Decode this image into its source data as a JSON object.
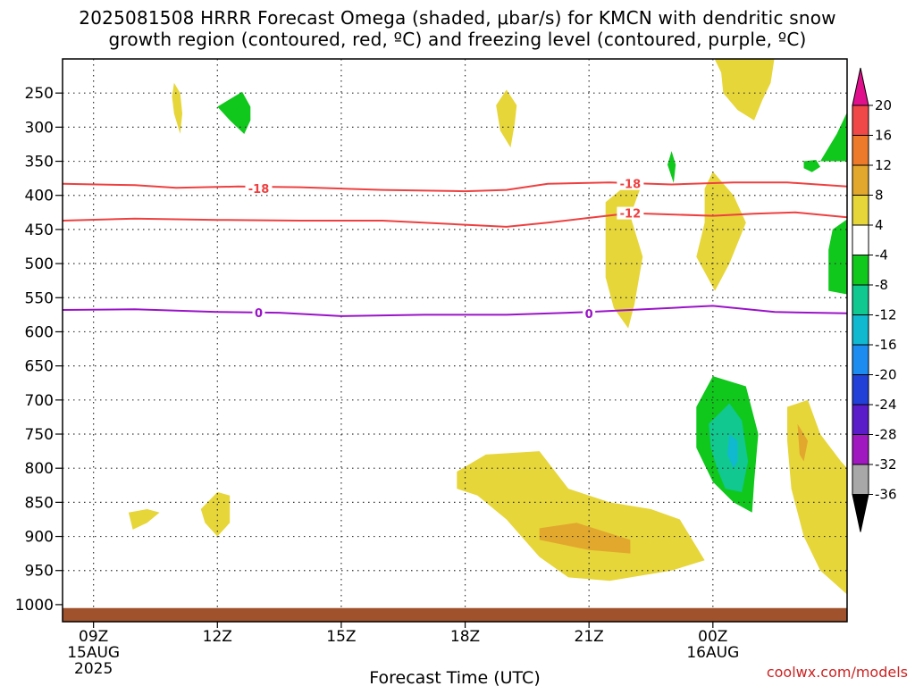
{
  "title": {
    "line1": "2025081508 HRRR Forecast Omega (shaded, μbar/s) for KMCN with dendritic snow",
    "line2": "growth region (contoured, red, ºC) and freezing level (contoured, purple, ºC)"
  },
  "credit": "coolwx.com/models",
  "chart_data": {
    "type": "heatmap",
    "xlabel": "Forecast Time (UTC)",
    "x_axis": {
      "range_hours": [
        -0.75,
        18.25
      ],
      "ticks": [
        {
          "hour": 0,
          "label": "09Z",
          "sub1": "15AUG",
          "sub2": "2025"
        },
        {
          "hour": 3,
          "label": "12Z",
          "sub1": "",
          "sub2": ""
        },
        {
          "hour": 6,
          "label": "15Z",
          "sub1": "",
          "sub2": ""
        },
        {
          "hour": 9,
          "label": "18Z",
          "sub1": "",
          "sub2": ""
        },
        {
          "hour": 12,
          "label": "21Z",
          "sub1": "",
          "sub2": ""
        },
        {
          "hour": 15,
          "label": "00Z",
          "sub1": "16AUG",
          "sub2": ""
        }
      ],
      "grid_hours": [
        0,
        3,
        6,
        9,
        12,
        15
      ]
    },
    "y_axis": {
      "unit": "hPa",
      "range": [
        200,
        1025
      ],
      "ticks": [
        250,
        300,
        350,
        400,
        450,
        500,
        550,
        600,
        650,
        700,
        750,
        800,
        850,
        900,
        950,
        1000
      ],
      "gridlines": [
        250,
        300,
        350,
        400,
        450,
        500,
        550,
        600,
        650,
        700,
        750,
        800,
        850,
        900,
        950
      ],
      "ground_level_hpa": 1005
    },
    "colorbar": {
      "unit": "μbar/s",
      "labels": [
        "20",
        "16",
        "12",
        "8",
        "4",
        "-4",
        "-8",
        "-12",
        "-16",
        "-20",
        "-24",
        "-28",
        "-32",
        "-36"
      ],
      "levels": [
        20,
        16,
        12,
        8,
        4,
        -4,
        -8,
        -12,
        -16,
        -20,
        -24,
        -28,
        -32,
        -36
      ],
      "bins": [
        {
          "range": [
            16,
            20
          ],
          "color": "#f04848"
        },
        {
          "range": [
            12,
            16
          ],
          "color": "#ec7a2a"
        },
        {
          "range": [
            8,
            12
          ],
          "color": "#e2a82e"
        },
        {
          "range": [
            4,
            8
          ],
          "color": "#e6d63a"
        },
        {
          "range": [
            -4,
            4
          ],
          "color": "#ffffff"
        },
        {
          "range": [
            -8,
            -4
          ],
          "color": "#10c81c"
        },
        {
          "range": [
            -12,
            -8
          ],
          "color": "#10c890"
        },
        {
          "range": [
            -16,
            -12
          ],
          "color": "#10b8d0"
        },
        {
          "range": [
            -20,
            -16
          ],
          "color": "#1c8cf0"
        },
        {
          "range": [
            -24,
            -20
          ],
          "color": "#2040d8"
        },
        {
          "range": [
            -28,
            -24
          ],
          "color": "#5a1cc8"
        },
        {
          "range": [
            -32,
            -28
          ],
          "color": "#a018c0"
        },
        {
          "range": [
            -36,
            -32
          ],
          "color": "#a8a8a8"
        }
      ],
      "over_color": "#e0108c",
      "under_color": "#000000"
    },
    "contours": [
      {
        "label": "-18",
        "color": "#ee4040",
        "label_positions": [
          [
            4.0,
            390
          ],
          [
            13.0,
            383
          ]
        ],
        "points": [
          [
            -0.75,
            383
          ],
          [
            1.0,
            385
          ],
          [
            2.0,
            389
          ],
          [
            3.5,
            387
          ],
          [
            5.0,
            388
          ],
          [
            7.0,
            392
          ],
          [
            9.0,
            394
          ],
          [
            10.0,
            392
          ],
          [
            11.0,
            383
          ],
          [
            12.5,
            381
          ],
          [
            14.0,
            384
          ],
          [
            15.5,
            381
          ],
          [
            16.8,
            381
          ],
          [
            18.25,
            387
          ]
        ]
      },
      {
        "label": "-12",
        "color": "#ee4040",
        "label_positions": [
          [
            13.0,
            426
          ]
        ],
        "points": [
          [
            -0.75,
            437
          ],
          [
            1.0,
            434
          ],
          [
            3.0,
            436
          ],
          [
            5.0,
            437
          ],
          [
            7.0,
            437
          ],
          [
            9.0,
            443
          ],
          [
            10.0,
            446
          ],
          [
            11.0,
            440
          ],
          [
            12.0,
            433
          ],
          [
            13.0,
            426
          ],
          [
            15.0,
            430
          ],
          [
            16.0,
            427
          ],
          [
            17.0,
            425
          ],
          [
            18.25,
            432
          ]
        ]
      },
      {
        "label": "0",
        "color": "#9a14c8",
        "label_positions": [
          [
            4.0,
            572
          ],
          [
            12.0,
            573
          ]
        ],
        "points": [
          [
            -0.75,
            568
          ],
          [
            1.0,
            567
          ],
          [
            3.0,
            571
          ],
          [
            4.5,
            572
          ],
          [
            6.0,
            577
          ],
          [
            8.0,
            575
          ],
          [
            10.0,
            575
          ],
          [
            12.0,
            571
          ],
          [
            14.0,
            565
          ],
          [
            15.0,
            562
          ],
          [
            16.5,
            571
          ],
          [
            18.25,
            573
          ]
        ]
      }
    ],
    "shaded_regions": [
      {
        "value_bin": "4-8",
        "color": "#e6d63a",
        "points": [
          [
            1.95,
            235
          ],
          [
            2.1,
            250
          ],
          [
            2.15,
            280
          ],
          [
            2.1,
            310
          ],
          [
            1.95,
            280
          ],
          [
            1.9,
            255
          ]
        ]
      },
      {
        "value_bin": "-8--4",
        "color": "#10c81c",
        "points": [
          [
            3.0,
            270
          ],
          [
            3.6,
            248
          ],
          [
            3.8,
            270
          ],
          [
            3.8,
            290
          ],
          [
            3.65,
            310
          ],
          [
            3.3,
            290
          ]
        ]
      },
      {
        "value_bin": "4-8",
        "color": "#e6d63a",
        "points": [
          [
            10.0,
            245
          ],
          [
            10.25,
            268
          ],
          [
            10.2,
            295
          ],
          [
            10.1,
            330
          ],
          [
            9.85,
            305
          ],
          [
            9.75,
            268
          ]
        ]
      },
      {
        "value_bin": "4-8",
        "color": "#e6d63a",
        "points": [
          [
            15.0,
            195
          ],
          [
            16.5,
            195
          ],
          [
            16.4,
            235
          ],
          [
            16.2,
            260
          ],
          [
            16.0,
            290
          ],
          [
            15.6,
            275
          ],
          [
            15.25,
            250
          ],
          [
            15.2,
            220
          ]
        ]
      },
      {
        "value_bin": "-8--4",
        "color": "#10c81c",
        "points": [
          [
            18.25,
            278
          ],
          [
            18.25,
            350
          ],
          [
            17.6,
            350
          ],
          [
            17.8,
            330
          ],
          [
            18.0,
            310
          ]
        ]
      },
      {
        "value_bin": "-8--4",
        "color": "#10c81c",
        "points": [
          [
            17.2,
            350
          ],
          [
            17.5,
            348
          ],
          [
            17.6,
            358
          ],
          [
            17.4,
            366
          ],
          [
            17.2,
            360
          ]
        ]
      },
      {
        "value_bin": "-8--4",
        "color": "#10c81c",
        "points": [
          [
            14.0,
            335
          ],
          [
            14.1,
            355
          ],
          [
            14.05,
            382
          ],
          [
            13.9,
            355
          ]
        ]
      },
      {
        "value_bin": "4-8",
        "color": "#e6d63a",
        "points": [
          [
            12.4,
            410
          ],
          [
            12.9,
            385
          ],
          [
            13.3,
            380
          ],
          [
            13.0,
            430
          ],
          [
            13.3,
            490
          ],
          [
            13.1,
            560
          ],
          [
            12.95,
            595
          ],
          [
            12.6,
            565
          ],
          [
            12.4,
            520
          ],
          [
            12.4,
            460
          ]
        ]
      },
      {
        "value_bin": "4-8",
        "color": "#e6d63a",
        "points": [
          [
            15.0,
            365
          ],
          [
            15.5,
            400
          ],
          [
            15.8,
            440
          ],
          [
            15.4,
            500
          ],
          [
            15.05,
            540
          ],
          [
            14.6,
            490
          ],
          [
            14.8,
            440
          ],
          [
            14.8,
            390
          ]
        ]
      },
      {
        "value_bin": "-8--4",
        "color": "#10c81c",
        "points": [
          [
            18.25,
            435
          ],
          [
            18.25,
            545
          ],
          [
            17.8,
            540
          ],
          [
            17.8,
            480
          ],
          [
            17.9,
            450
          ]
        ]
      },
      {
        "value_bin": "4-8",
        "color": "#e6d63a",
        "points": [
          [
            0.85,
            865
          ],
          [
            1.3,
            860
          ],
          [
            1.6,
            865
          ],
          [
            1.3,
            880
          ],
          [
            0.95,
            890
          ]
        ]
      },
      {
        "value_bin": "4-8",
        "color": "#e6d63a",
        "points": [
          [
            2.6,
            860
          ],
          [
            3.0,
            835
          ],
          [
            3.3,
            840
          ],
          [
            3.3,
            880
          ],
          [
            3.0,
            900
          ],
          [
            2.7,
            880
          ]
        ]
      },
      {
        "value_bin": "4-8",
        "color": "#e6d63a",
        "points": [
          [
            8.8,
            805
          ],
          [
            9.5,
            780
          ],
          [
            10.8,
            775
          ],
          [
            11.5,
            830
          ],
          [
            12.5,
            850
          ],
          [
            13.5,
            860
          ],
          [
            14.2,
            875
          ],
          [
            14.8,
            935
          ],
          [
            14.0,
            950
          ],
          [
            12.5,
            965
          ],
          [
            11.5,
            960
          ],
          [
            10.8,
            930
          ],
          [
            10.0,
            875
          ],
          [
            9.3,
            840
          ],
          [
            8.8,
            830
          ]
        ]
      },
      {
        "value_bin": "8-12",
        "color": "#e2a82e",
        "points": [
          [
            10.8,
            888
          ],
          [
            11.7,
            880
          ],
          [
            13.0,
            905
          ],
          [
            13.0,
            925
          ],
          [
            12.0,
            920
          ],
          [
            10.8,
            905
          ]
        ]
      },
      {
        "value_bin": "-8--4",
        "color": "#10c81c",
        "points": [
          [
            14.6,
            710
          ],
          [
            15.0,
            665
          ],
          [
            15.8,
            680
          ],
          [
            16.1,
            750
          ],
          [
            16.0,
            820
          ],
          [
            15.95,
            865
          ],
          [
            15.5,
            850
          ],
          [
            15.0,
            820
          ],
          [
            14.6,
            770
          ]
        ]
      },
      {
        "value_bin": "-12--8",
        "color": "#10c890",
        "points": [
          [
            14.9,
            735
          ],
          [
            15.4,
            705
          ],
          [
            15.7,
            730
          ],
          [
            15.85,
            790
          ],
          [
            15.7,
            835
          ],
          [
            15.3,
            830
          ],
          [
            15.1,
            800
          ],
          [
            14.95,
            770
          ]
        ]
      },
      {
        "value_bin": "-16--12",
        "color": "#10b8d0",
        "points": [
          [
            15.4,
            750
          ],
          [
            15.6,
            760
          ],
          [
            15.6,
            790
          ],
          [
            15.5,
            800
          ],
          [
            15.35,
            780
          ]
        ]
      },
      {
        "value_bin": "4-8",
        "color": "#e6d63a",
        "points": [
          [
            16.8,
            710
          ],
          [
            17.3,
            700
          ],
          [
            17.6,
            750
          ],
          [
            18.1,
            790
          ],
          [
            18.25,
            800
          ],
          [
            18.25,
            985
          ],
          [
            17.6,
            950
          ],
          [
            17.2,
            900
          ],
          [
            16.9,
            830
          ],
          [
            16.8,
            760
          ]
        ]
      },
      {
        "value_bin": "8-12",
        "color": "#e2a82e",
        "points": [
          [
            17.05,
            735
          ],
          [
            17.3,
            760
          ],
          [
            17.2,
            790
          ],
          [
            17.1,
            780
          ]
        ]
      }
    ]
  }
}
